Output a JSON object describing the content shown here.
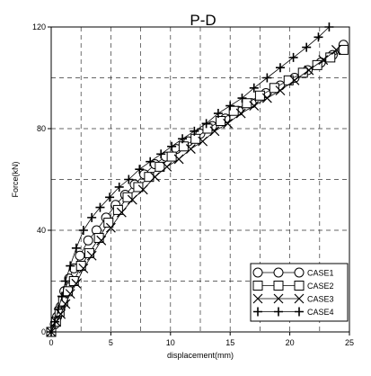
{
  "chart_data": {
    "type": "line",
    "title": "P-D",
    "xlabel": "displacement(mm)",
    "ylabel": "Force(kN)",
    "xlim": [
      0,
      25
    ],
    "ylim": [
      0,
      120
    ],
    "x_ticks": [
      "0",
      "5",
      "10",
      "15",
      "20",
      "25"
    ],
    "y_ticks": [
      "0",
      "40",
      "80",
      "120"
    ],
    "grid": true,
    "grid_style": "dashed",
    "legend_position": "bottom-right",
    "series": [
      {
        "name": "CASE1",
        "marker": "circle",
        "x": [
          0,
          0.3,
          0.5,
          0.8,
          1.1,
          1.5,
          1.9,
          2.4,
          3.1,
          3.8,
          4.6,
          5.4,
          6.2,
          7.0,
          7.8,
          8.7,
          9.6,
          10.5,
          11.5,
          12.5,
          13.5,
          14.6,
          15.7,
          16.8,
          18.0,
          19.2,
          20.4,
          21.5,
          22.6,
          23.6,
          24.5
        ],
        "y": [
          0,
          3,
          6,
          10,
          16,
          21,
          25,
          30,
          36,
          40,
          45,
          50,
          54,
          58,
          62,
          66,
          69,
          72,
          75,
          78,
          81,
          84,
          87,
          90,
          94,
          97,
          100,
          103,
          106,
          109,
          113
        ]
      },
      {
        "name": "CASE2",
        "marker": "square",
        "x": [
          0,
          0.4,
          0.7,
          1.0,
          1.4,
          1.9,
          2.5,
          3.2,
          4.0,
          4.8,
          5.6,
          6.4,
          7.3,
          8.2,
          9.1,
          10.1,
          11.1,
          12.1,
          13.1,
          14.2,
          15.3,
          16.4,
          17.5,
          18.7,
          19.9,
          21.1,
          22.3,
          23.4,
          24.5
        ],
        "y": [
          0,
          4,
          8,
          12,
          16,
          20,
          26,
          31,
          37,
          43,
          48,
          53,
          57,
          61,
          65,
          69,
          73,
          76,
          80,
          83,
          87,
          90,
          93,
          96,
          99,
          102,
          105,
          108,
          111
        ]
      },
      {
        "name": "CASE3",
        "marker": "x",
        "x": [
          0,
          0.4,
          0.8,
          1.2,
          1.6,
          2.1,
          2.7,
          3.4,
          4.2,
          5.0,
          5.9,
          6.8,
          7.7,
          8.7,
          9.7,
          10.7,
          11.7,
          12.7,
          13.7,
          14.8,
          15.9,
          17.0,
          18.1,
          19.2,
          20.4,
          21.6,
          22.8,
          23.9
        ],
        "y": [
          0,
          4,
          7,
          11,
          15,
          19,
          25,
          30,
          36,
          41,
          47,
          52,
          56,
          61,
          65,
          68,
          72,
          75,
          79,
          82,
          86,
          89,
          92,
          95,
          99,
          103,
          107,
          111
        ]
      },
      {
        "name": "CASE4",
        "marker": "plus",
        "x": [
          0,
          0.3,
          0.6,
          0.9,
          1.2,
          1.6,
          2.1,
          2.7,
          3.4,
          4.1,
          4.9,
          5.7,
          6.5,
          7.4,
          8.3,
          9.2,
          10.1,
          11.0,
          12.0,
          13.0,
          14.0,
          15.0,
          16.0,
          17.0,
          18.1,
          19.2,
          20.3,
          21.4,
          22.4,
          23.3
        ],
        "y": [
          0,
          4,
          9,
          14,
          20,
          26,
          33,
          40,
          45,
          49,
          53,
          57,
          60,
          64,
          67,
          70,
          73,
          76,
          79,
          82,
          86,
          89,
          92,
          96,
          100,
          104,
          108,
          112,
          116,
          120
        ]
      }
    ]
  }
}
